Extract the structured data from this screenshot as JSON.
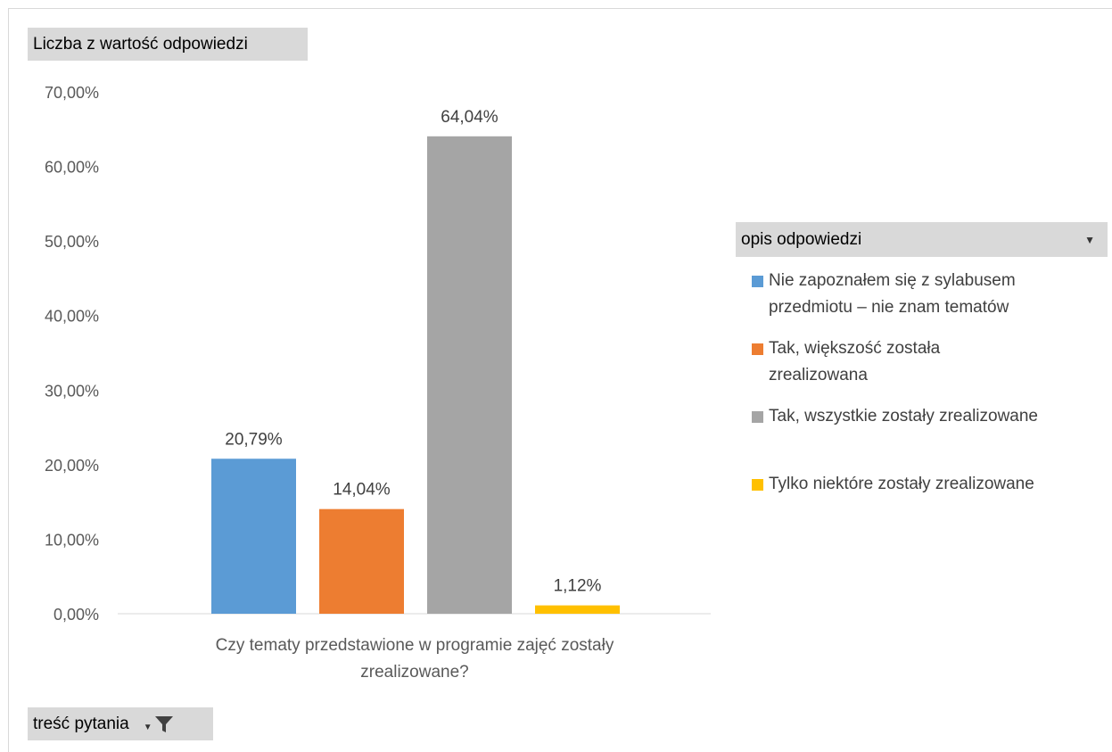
{
  "pivot": {
    "value_field": "Liczba z wartość odpowiedzi",
    "axis_field": "treść pytania",
    "legend_field": "opis odpowiedzi",
    "filter_icon": "filter-funnel-icon",
    "dropdown_icon": "dropdown-arrow-icon"
  },
  "colors": {
    "series": [
      "#5b9bd5",
      "#ed7d31",
      "#a5a5a5",
      "#ffc000"
    ],
    "gridline": "#d9d9d9",
    "field_button": "#d9d9d9"
  },
  "chart_data": {
    "type": "bar",
    "categories": [
      "Czy  tematy przedstawione w programie zajęć zostały zrealizowane?"
    ],
    "category_lines": [
      "Czy  tematy przedstawione w programie zajęć zostały",
      "zrealizowane?"
    ],
    "series": [
      {
        "name": "Nie zapoznałem się z sylabusem przedmiotu – nie znam tematów",
        "values": [
          20.79
        ],
        "label": "20,79%"
      },
      {
        "name": "Tak, większość została zrealizowana",
        "values": [
          14.04
        ],
        "label": "14,04%"
      },
      {
        "name": "Tak, wszystkie zostały zrealizowane",
        "values": [
          64.04
        ],
        "label": "64,04%"
      },
      {
        "name": "Tylko niektóre zostały zrealizowane",
        "values": [
          1.12
        ],
        "label": "1,12%"
      }
    ],
    "yticks": [
      0,
      10,
      20,
      30,
      40,
      50,
      60,
      70
    ],
    "ytick_labels": [
      "0,00%",
      "10,00%",
      "20,00%",
      "30,00%",
      "40,00%",
      "50,00%",
      "60,00%",
      "70,00%"
    ],
    "ylim": [
      0,
      70
    ],
    "grid": false,
    "legend_position": "right"
  },
  "legend": {
    "items": [
      {
        "lines": [
          "Nie zapoznałem się z sylabusem",
          "przedmiotu – nie znam tematów"
        ]
      },
      {
        "lines": [
          "Tak, większość została",
          "zrealizowana"
        ]
      },
      {
        "lines": [
          "Tak, wszystkie zostały zrealizowane"
        ]
      },
      {
        "lines": [
          "Tylko niektóre zostały zrealizowane"
        ]
      }
    ]
  }
}
